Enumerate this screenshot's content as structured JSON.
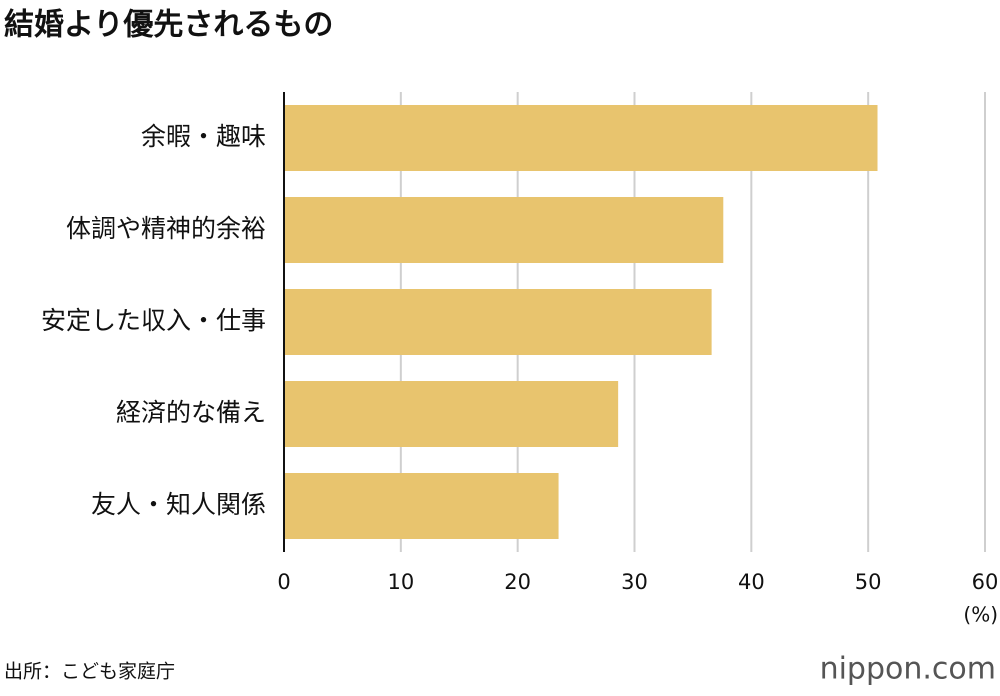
{
  "chart_data": {
    "type": "bar",
    "orientation": "horizontal",
    "title": "結婚より優先されるもの",
    "categories": [
      "余暇・趣味",
      "体調や精神的余裕",
      "安定した収入・仕事",
      "経済的な備え",
      "友人・知人関係"
    ],
    "values": [
      50.8,
      37.6,
      36.6,
      28.6,
      23.5
    ],
    "color": "#e8c46e",
    "xlim": [
      0,
      60
    ],
    "xticks": [
      0,
      10,
      20,
      30,
      40,
      50,
      60
    ],
    "grid": true,
    "unit_label": "(%)",
    "source": "出所：こども家庭庁",
    "logo": "nippon.com"
  }
}
